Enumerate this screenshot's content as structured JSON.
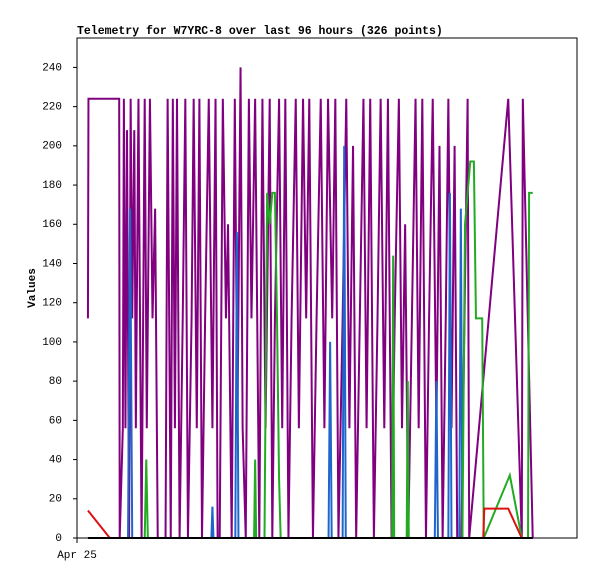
{
  "chart_data": {
    "type": "line",
    "title": "Telemetry for W7YRC-8 over last 96 hours (326 points)",
    "ylabel": "Values",
    "xlim": [
      0,
      96
    ],
    "xticks": [
      {
        "value": 0,
        "label": "Apr 25"
      }
    ],
    "ylim": [
      0,
      255
    ],
    "yticks": [
      0,
      20,
      40,
      60,
      80,
      100,
      120,
      140,
      160,
      180,
      200,
      220,
      240
    ],
    "series": [
      {
        "color": "#800080",
        "x": [
          2.1,
          2.2,
          8.1,
          8.2,
          8.8,
          9.0,
          9.3,
          9.6,
          10,
          10.3,
          10.6,
          11,
          11.3,
          11.8,
          12.4,
          13,
          13.4,
          14,
          14.5,
          15,
          15.5,
          17,
          17.4,
          18,
          18.4,
          18.8,
          19.2,
          19.7,
          20.3,
          20.8,
          21.3,
          22,
          22.4,
          23,
          23.5,
          24,
          24.6,
          25.3,
          26,
          26.6,
          27,
          27.4,
          28,
          28.6,
          29,
          29.7,
          30.3,
          30.8,
          31.4,
          31.8,
          32.4,
          33,
          33.5,
          34.2,
          35,
          35.6,
          36.2,
          37,
          37.5,
          38,
          38.8,
          39.4,
          40,
          40.6,
          41.2,
          42,
          42.6,
          43.4,
          44,
          44.6,
          45.3,
          46,
          46.8,
          47.5,
          48.2,
          49,
          49.6,
          50.2,
          51,
          51.7,
          52.3,
          53,
          53.6,
          54.3,
          55,
          55.6,
          56.3,
          57,
          57.7,
          58.3,
          59,
          59.7,
          60.4,
          61,
          61.8,
          62.4,
          63,
          63.6,
          64.3,
          65,
          65.6,
          66.3,
          67,
          67.6,
          68.3,
          69,
          69.6,
          70.2,
          70.8,
          71.3,
          71.9,
          72.5,
          73,
          73.8,
          74.4,
          75,
          75.3,
          82.8,
          85.4,
          85.6,
          87.5
        ],
        "values": [
          112,
          224,
          224,
          0,
          56,
          224,
          56,
          208,
          0,
          224,
          112,
          208,
          56,
          224,
          0,
          224,
          56,
          224,
          112,
          168,
          0,
          0,
          224,
          0,
          224,
          56,
          224,
          0,
          112,
          224,
          0,
          112,
          224,
          56,
          224,
          0,
          112,
          224,
          56,
          224,
          0,
          0,
          224,
          112,
          160,
          0,
          224,
          56,
          240,
          56,
          0,
          224,
          112,
          224,
          0,
          224,
          56,
          224,
          0,
          112,
          224,
          56,
          224,
          0,
          112,
          224,
          56,
          224,
          112,
          224,
          0,
          112,
          224,
          56,
          224,
          112,
          224,
          0,
          112,
          224,
          56,
          200,
          0,
          112,
          224,
          56,
          224,
          0,
          112,
          224,
          56,
          224,
          0,
          112,
          224,
          56,
          160,
          0,
          112,
          224,
          56,
          224,
          0,
          112,
          224,
          56,
          200,
          0,
          112,
          224,
          56,
          200,
          0,
          0,
          112,
          224,
          0,
          224,
          0,
          224,
          0
        ]
      },
      {
        "color": "#1f66cc",
        "x": [
          2.1,
          9.8,
          10.2,
          10.6,
          25.8,
          26,
          26.2,
          30.4,
          30.7,
          31,
          48.3,
          48.6,
          48.9,
          51,
          51.3,
          51.6,
          68.7,
          69,
          69.3,
          71.3,
          71.6,
          71.9,
          73.4,
          73.7,
          74,
          87.5
        ],
        "values": [
          0,
          0,
          168,
          0,
          0,
          16,
          0,
          0,
          156,
          0,
          0,
          100,
          0,
          0,
          200,
          0,
          0,
          80,
          0,
          0,
          176,
          0,
          0,
          168,
          0,
          0
        ]
      },
      {
        "color": "#22aa22",
        "x": [
          2.1,
          13,
          13.3,
          13.6,
          34,
          34.2,
          34.4,
          36,
          36.5,
          37,
          37.5,
          38,
          38.4,
          38.8,
          39.1,
          60.5,
          60.7,
          60.9,
          63.3,
          63.5,
          63.7,
          74,
          74.5,
          75,
          75.5,
          76.2,
          76.6,
          77.8,
          78.1,
          83.1,
          85.4,
          86.6,
          86.8,
          87.5
        ],
        "values": [
          0,
          0,
          40,
          0,
          0,
          40,
          0,
          0,
          176,
          160,
          176,
          176,
          112,
          30,
          0,
          0,
          144,
          0,
          0,
          80,
          0,
          0,
          160,
          176,
          192,
          192,
          112,
          112,
          0,
          32,
          0,
          0,
          176,
          176
        ]
      },
      {
        "color": "#dd1111",
        "x": [
          2.1,
          6.3,
          78,
          78.2,
          82.8,
          85.4,
          87.5
        ],
        "values": [
          14,
          0,
          0,
          15,
          15,
          0,
          0
        ]
      },
      {
        "color": "#000000",
        "x": [
          2.1,
          87.5
        ],
        "values": [
          0,
          0
        ]
      }
    ]
  }
}
